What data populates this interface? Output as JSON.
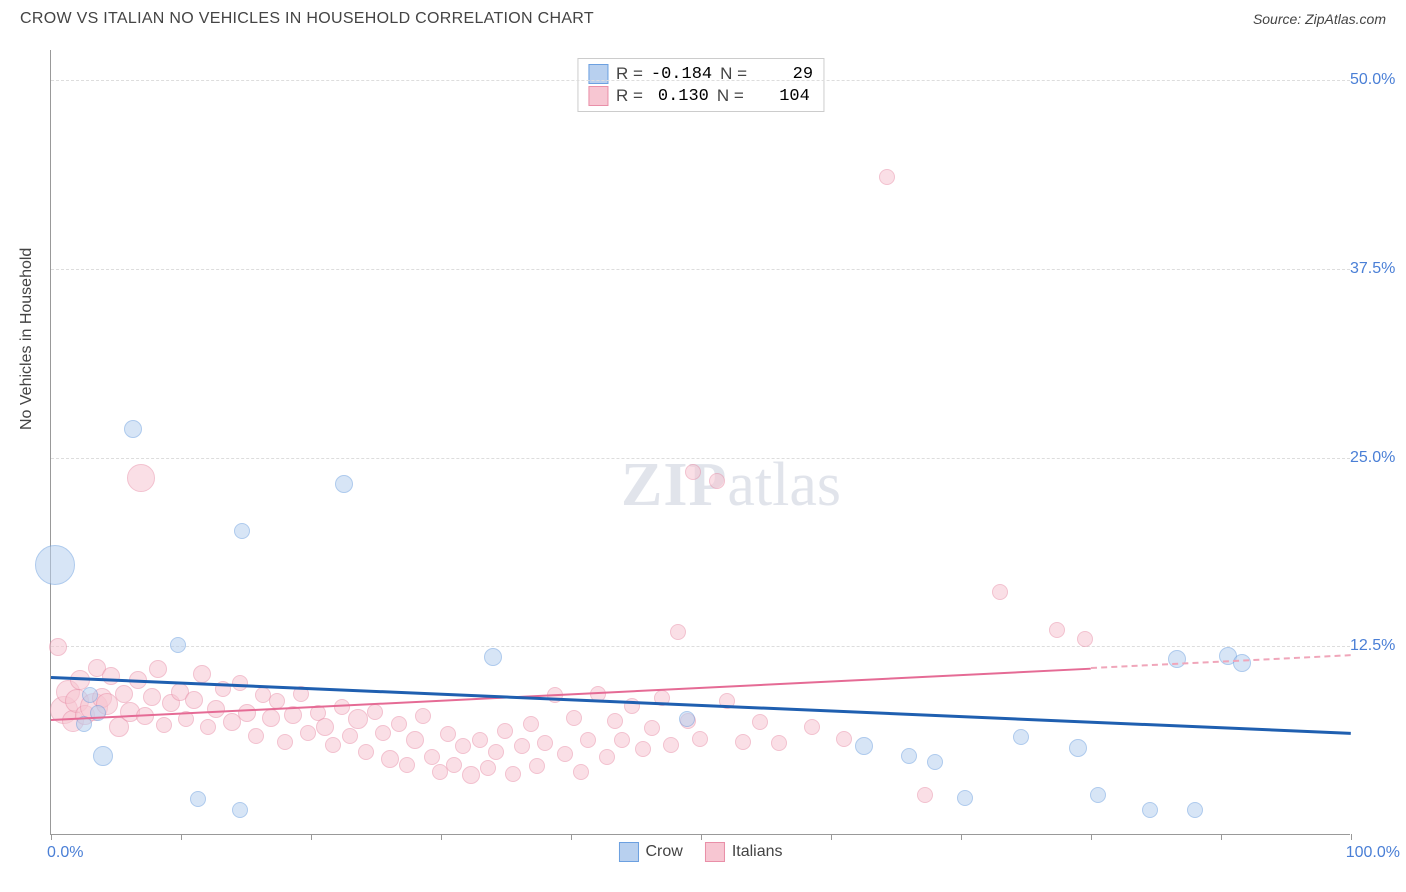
{
  "header": {
    "title": "CROW VS ITALIAN NO VEHICLES IN HOUSEHOLD CORRELATION CHART",
    "source": "Source: ZipAtlas.com"
  },
  "watermark": {
    "bold": "ZIP",
    "light": "atlas"
  },
  "chart": {
    "type": "scatter",
    "ylabel": "No Vehicles in Household",
    "xlim": [
      0,
      100
    ],
    "ylim": [
      0,
      52
    ],
    "xtick_positions": [
      0,
      10,
      20,
      30,
      40,
      50,
      60,
      70,
      80,
      90,
      100
    ],
    "xtick_labels": {
      "0": "0.0%",
      "100": "100.0%"
    },
    "ytick_positions": [
      12.5,
      25.0,
      37.5,
      50.0
    ],
    "ytick_labels": [
      "12.5%",
      "25.0%",
      "37.5%",
      "50.0%"
    ],
    "grid_color": "#dddddd",
    "axis_color": "#999999",
    "background_color": "#ffffff",
    "tick_label_color": "#4a7fd6",
    "series": {
      "crow": {
        "label": "Crow",
        "fill": "#b8d0ef",
        "stroke": "#6ca0e0",
        "fill_opacity": 0.55,
        "trend": {
          "x1": 0,
          "y1": 10.5,
          "x2": 100,
          "y2": 6.8,
          "color": "#1f5fb0",
          "width": 2.5
        },
        "points": [
          {
            "x": 0.3,
            "y": 17.8,
            "r": 20
          },
          {
            "x": 2.5,
            "y": 7.3,
            "r": 8
          },
          {
            "x": 3.0,
            "y": 9.2,
            "r": 8
          },
          {
            "x": 3.6,
            "y": 8.0,
            "r": 8
          },
          {
            "x": 4.0,
            "y": 5.2,
            "r": 10
          },
          {
            "x": 6.3,
            "y": 26.8,
            "r": 9
          },
          {
            "x": 9.8,
            "y": 12.5,
            "r": 8
          },
          {
            "x": 11.3,
            "y": 2.3,
            "r": 8
          },
          {
            "x": 14.5,
            "y": 1.6,
            "r": 8
          },
          {
            "x": 14.7,
            "y": 20.1,
            "r": 8
          },
          {
            "x": 22.5,
            "y": 23.2,
            "r": 9
          },
          {
            "x": 34.0,
            "y": 11.7,
            "r": 9
          },
          {
            "x": 48.9,
            "y": 7.6,
            "r": 8
          },
          {
            "x": 62.5,
            "y": 5.8,
            "r": 9
          },
          {
            "x": 66.0,
            "y": 5.2,
            "r": 8
          },
          {
            "x": 68.0,
            "y": 4.8,
            "r": 8
          },
          {
            "x": 70.3,
            "y": 2.4,
            "r": 8
          },
          {
            "x": 74.6,
            "y": 6.4,
            "r": 8
          },
          {
            "x": 79.0,
            "y": 5.7,
            "r": 9
          },
          {
            "x": 80.5,
            "y": 2.6,
            "r": 8
          },
          {
            "x": 84.5,
            "y": 1.6,
            "r": 8
          },
          {
            "x": 86.6,
            "y": 11.6,
            "r": 9
          },
          {
            "x": 88.0,
            "y": 1.6,
            "r": 8
          },
          {
            "x": 90.5,
            "y": 11.8,
            "r": 9
          },
          {
            "x": 91.6,
            "y": 11.3,
            "r": 9
          }
        ]
      },
      "italian": {
        "label": "Italians",
        "fill": "#f7c6d2",
        "stroke": "#e98fa8",
        "fill_opacity": 0.55,
        "trend": {
          "x1": 0,
          "y1": 7.7,
          "x2": 80,
          "y2": 11.1,
          "color": "#e56b95",
          "width": 2.3
        },
        "trend_dash": {
          "x1": 80,
          "y1": 11.1,
          "x2": 100,
          "y2": 11.95,
          "color": "#f0a6ba"
        },
        "points": [
          {
            "x": 0.5,
            "y": 12.4,
            "r": 9
          },
          {
            "x": 1.0,
            "y": 8.2,
            "r": 14
          },
          {
            "x": 1.3,
            "y": 9.4,
            "r": 12
          },
          {
            "x": 1.7,
            "y": 7.5,
            "r": 11
          },
          {
            "x": 2.0,
            "y": 8.8,
            "r": 12
          },
          {
            "x": 2.2,
            "y": 10.2,
            "r": 10
          },
          {
            "x": 2.6,
            "y": 7.9,
            "r": 10
          },
          {
            "x": 3.3,
            "y": 8.4,
            "r": 14
          },
          {
            "x": 3.5,
            "y": 11.0,
            "r": 9
          },
          {
            "x": 3.9,
            "y": 9.0,
            "r": 10
          },
          {
            "x": 4.3,
            "y": 8.6,
            "r": 11
          },
          {
            "x": 4.6,
            "y": 10.5,
            "r": 9
          },
          {
            "x": 5.2,
            "y": 7.1,
            "r": 10
          },
          {
            "x": 5.6,
            "y": 9.3,
            "r": 9
          },
          {
            "x": 6.1,
            "y": 8.1,
            "r": 10
          },
          {
            "x": 6.7,
            "y": 10.2,
            "r": 9
          },
          {
            "x": 6.9,
            "y": 23.6,
            "r": 14
          },
          {
            "x": 7.2,
            "y": 7.8,
            "r": 9
          },
          {
            "x": 7.8,
            "y": 9.1,
            "r": 9
          },
          {
            "x": 8.2,
            "y": 10.9,
            "r": 9
          },
          {
            "x": 8.7,
            "y": 7.2,
            "r": 8
          },
          {
            "x": 9.2,
            "y": 8.7,
            "r": 9
          },
          {
            "x": 9.9,
            "y": 9.4,
            "r": 9
          },
          {
            "x": 10.4,
            "y": 7.6,
            "r": 8
          },
          {
            "x": 11.0,
            "y": 8.9,
            "r": 9
          },
          {
            "x": 11.6,
            "y": 10.6,
            "r": 9
          },
          {
            "x": 12.1,
            "y": 7.1,
            "r": 8
          },
          {
            "x": 12.7,
            "y": 8.3,
            "r": 9
          },
          {
            "x": 13.2,
            "y": 9.6,
            "r": 8
          },
          {
            "x": 13.9,
            "y": 7.4,
            "r": 9
          },
          {
            "x": 14.5,
            "y": 10.0,
            "r": 8
          },
          {
            "x": 15.1,
            "y": 8.0,
            "r": 9
          },
          {
            "x": 15.8,
            "y": 6.5,
            "r": 8
          },
          {
            "x": 16.3,
            "y": 9.2,
            "r": 8
          },
          {
            "x": 16.9,
            "y": 7.7,
            "r": 9
          },
          {
            "x": 17.4,
            "y": 8.8,
            "r": 8
          },
          {
            "x": 18.0,
            "y": 6.1,
            "r": 8
          },
          {
            "x": 18.6,
            "y": 7.9,
            "r": 9
          },
          {
            "x": 19.2,
            "y": 9.3,
            "r": 8
          },
          {
            "x": 19.8,
            "y": 6.7,
            "r": 8
          },
          {
            "x": 20.5,
            "y": 8.0,
            "r": 8
          },
          {
            "x": 21.1,
            "y": 7.1,
            "r": 9
          },
          {
            "x": 21.7,
            "y": 5.9,
            "r": 8
          },
          {
            "x": 22.4,
            "y": 8.4,
            "r": 8
          },
          {
            "x": 23.0,
            "y": 6.5,
            "r": 8
          },
          {
            "x": 23.6,
            "y": 7.6,
            "r": 10
          },
          {
            "x": 24.2,
            "y": 5.4,
            "r": 8
          },
          {
            "x": 24.9,
            "y": 8.1,
            "r": 8
          },
          {
            "x": 25.5,
            "y": 6.7,
            "r": 8
          },
          {
            "x": 26.1,
            "y": 5.0,
            "r": 9
          },
          {
            "x": 26.8,
            "y": 7.3,
            "r": 8
          },
          {
            "x": 27.4,
            "y": 4.6,
            "r": 8
          },
          {
            "x": 28.0,
            "y": 6.2,
            "r": 9
          },
          {
            "x": 28.6,
            "y": 7.8,
            "r": 8
          },
          {
            "x": 29.3,
            "y": 5.1,
            "r": 8
          },
          {
            "x": 29.9,
            "y": 4.1,
            "r": 8
          },
          {
            "x": 30.5,
            "y": 6.6,
            "r": 8
          },
          {
            "x": 31.0,
            "y": 4.6,
            "r": 8
          },
          {
            "x": 31.7,
            "y": 5.8,
            "r": 8
          },
          {
            "x": 32.3,
            "y": 3.9,
            "r": 9
          },
          {
            "x": 33.0,
            "y": 6.2,
            "r": 8
          },
          {
            "x": 33.6,
            "y": 4.4,
            "r": 8
          },
          {
            "x": 34.2,
            "y": 5.4,
            "r": 8
          },
          {
            "x": 34.9,
            "y": 6.8,
            "r": 8
          },
          {
            "x": 35.5,
            "y": 4.0,
            "r": 8
          },
          {
            "x": 36.2,
            "y": 5.8,
            "r": 8
          },
          {
            "x": 36.9,
            "y": 7.3,
            "r": 8
          },
          {
            "x": 37.4,
            "y": 4.5,
            "r": 8
          },
          {
            "x": 38.0,
            "y": 6.0,
            "r": 8
          },
          {
            "x": 38.8,
            "y": 9.2,
            "r": 8
          },
          {
            "x": 39.5,
            "y": 5.3,
            "r": 8
          },
          {
            "x": 40.2,
            "y": 7.7,
            "r": 8
          },
          {
            "x": 40.8,
            "y": 4.1,
            "r": 8
          },
          {
            "x": 41.3,
            "y": 6.2,
            "r": 8
          },
          {
            "x": 42.1,
            "y": 9.3,
            "r": 8
          },
          {
            "x": 42.8,
            "y": 5.1,
            "r": 8
          },
          {
            "x": 43.4,
            "y": 7.5,
            "r": 8
          },
          {
            "x": 43.9,
            "y": 6.2,
            "r": 8
          },
          {
            "x": 44.7,
            "y": 8.5,
            "r": 8
          },
          {
            "x": 45.5,
            "y": 5.6,
            "r": 8
          },
          {
            "x": 46.2,
            "y": 7.0,
            "r": 8
          },
          {
            "x": 47.0,
            "y": 9.0,
            "r": 8
          },
          {
            "x": 47.7,
            "y": 5.9,
            "r": 8
          },
          {
            "x": 48.2,
            "y": 13.4,
            "r": 8
          },
          {
            "x": 49.0,
            "y": 7.5,
            "r": 8
          },
          {
            "x": 49.4,
            "y": 24.0,
            "r": 8
          },
          {
            "x": 49.9,
            "y": 6.3,
            "r": 8
          },
          {
            "x": 51.2,
            "y": 23.4,
            "r": 8
          },
          {
            "x": 52.0,
            "y": 8.8,
            "r": 8
          },
          {
            "x": 53.2,
            "y": 6.1,
            "r": 8
          },
          {
            "x": 54.5,
            "y": 7.4,
            "r": 8
          },
          {
            "x": 56.0,
            "y": 6.0,
            "r": 8
          },
          {
            "x": 58.5,
            "y": 7.1,
            "r": 8
          },
          {
            "x": 61.0,
            "y": 6.3,
            "r": 8
          },
          {
            "x": 64.3,
            "y": 43.5,
            "r": 8
          },
          {
            "x": 67.2,
            "y": 2.6,
            "r": 8
          },
          {
            "x": 73.0,
            "y": 16.0,
            "r": 8
          },
          {
            "x": 77.4,
            "y": 13.5,
            "r": 8
          },
          {
            "x": 79.5,
            "y": 12.9,
            "r": 8
          }
        ]
      }
    },
    "stats": {
      "rows": [
        {
          "swatch_fill": "#b8d0ef",
          "swatch_stroke": "#6ca0e0",
          "r": "-0.184",
          "n": "29"
        },
        {
          "swatch_fill": "#f7c6d2",
          "swatch_stroke": "#e98fa8",
          "r": "0.130",
          "n": "104"
        }
      ],
      "r_label": "R =",
      "n_label": "N ="
    },
    "legend": {
      "items": [
        {
          "label": "Crow",
          "fill": "#b8d0ef",
          "stroke": "#6ca0e0"
        },
        {
          "label": "Italians",
          "fill": "#f7c6d2",
          "stroke": "#e98fa8"
        }
      ]
    }
  }
}
